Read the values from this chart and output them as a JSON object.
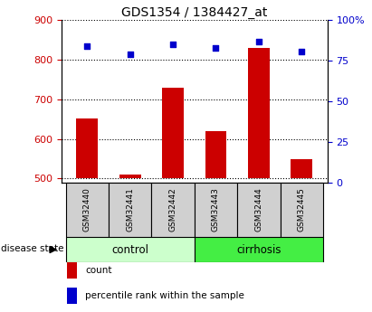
{
  "title": "GDS1354 / 1384427_at",
  "samples": [
    "GSM32440",
    "GSM32441",
    "GSM32442",
    "GSM32443",
    "GSM32444",
    "GSM32445"
  ],
  "count_values": [
    651,
    510,
    730,
    621,
    830,
    550
  ],
  "percentile_values": [
    84,
    79,
    85,
    83,
    87,
    81
  ],
  "ylim_left": [
    490,
    900
  ],
  "ylim_right": [
    0,
    100
  ],
  "yticks_left": [
    500,
    600,
    700,
    800,
    900
  ],
  "yticks_right": [
    0,
    25,
    50,
    75,
    100
  ],
  "bar_color": "#cc0000",
  "scatter_color": "#0000cc",
  "bar_bottom": 500,
  "groups": [
    {
      "label": "control",
      "indices": [
        0,
        1,
        2
      ],
      "color": "#ccffcc"
    },
    {
      "label": "cirrhosis",
      "indices": [
        3,
        4,
        5
      ],
      "color": "#44ee44"
    }
  ],
  "disease_state_label": "disease state",
  "legend_count_label": "count",
  "legend_percentile_label": "percentile rank within the sample",
  "bar_width": 0.5,
  "left_color": "#cc0000",
  "right_color": "#0000cc",
  "sample_box_color": "#d0d0d0",
  "fig_width": 4.11,
  "fig_height": 3.45,
  "dpi": 100
}
